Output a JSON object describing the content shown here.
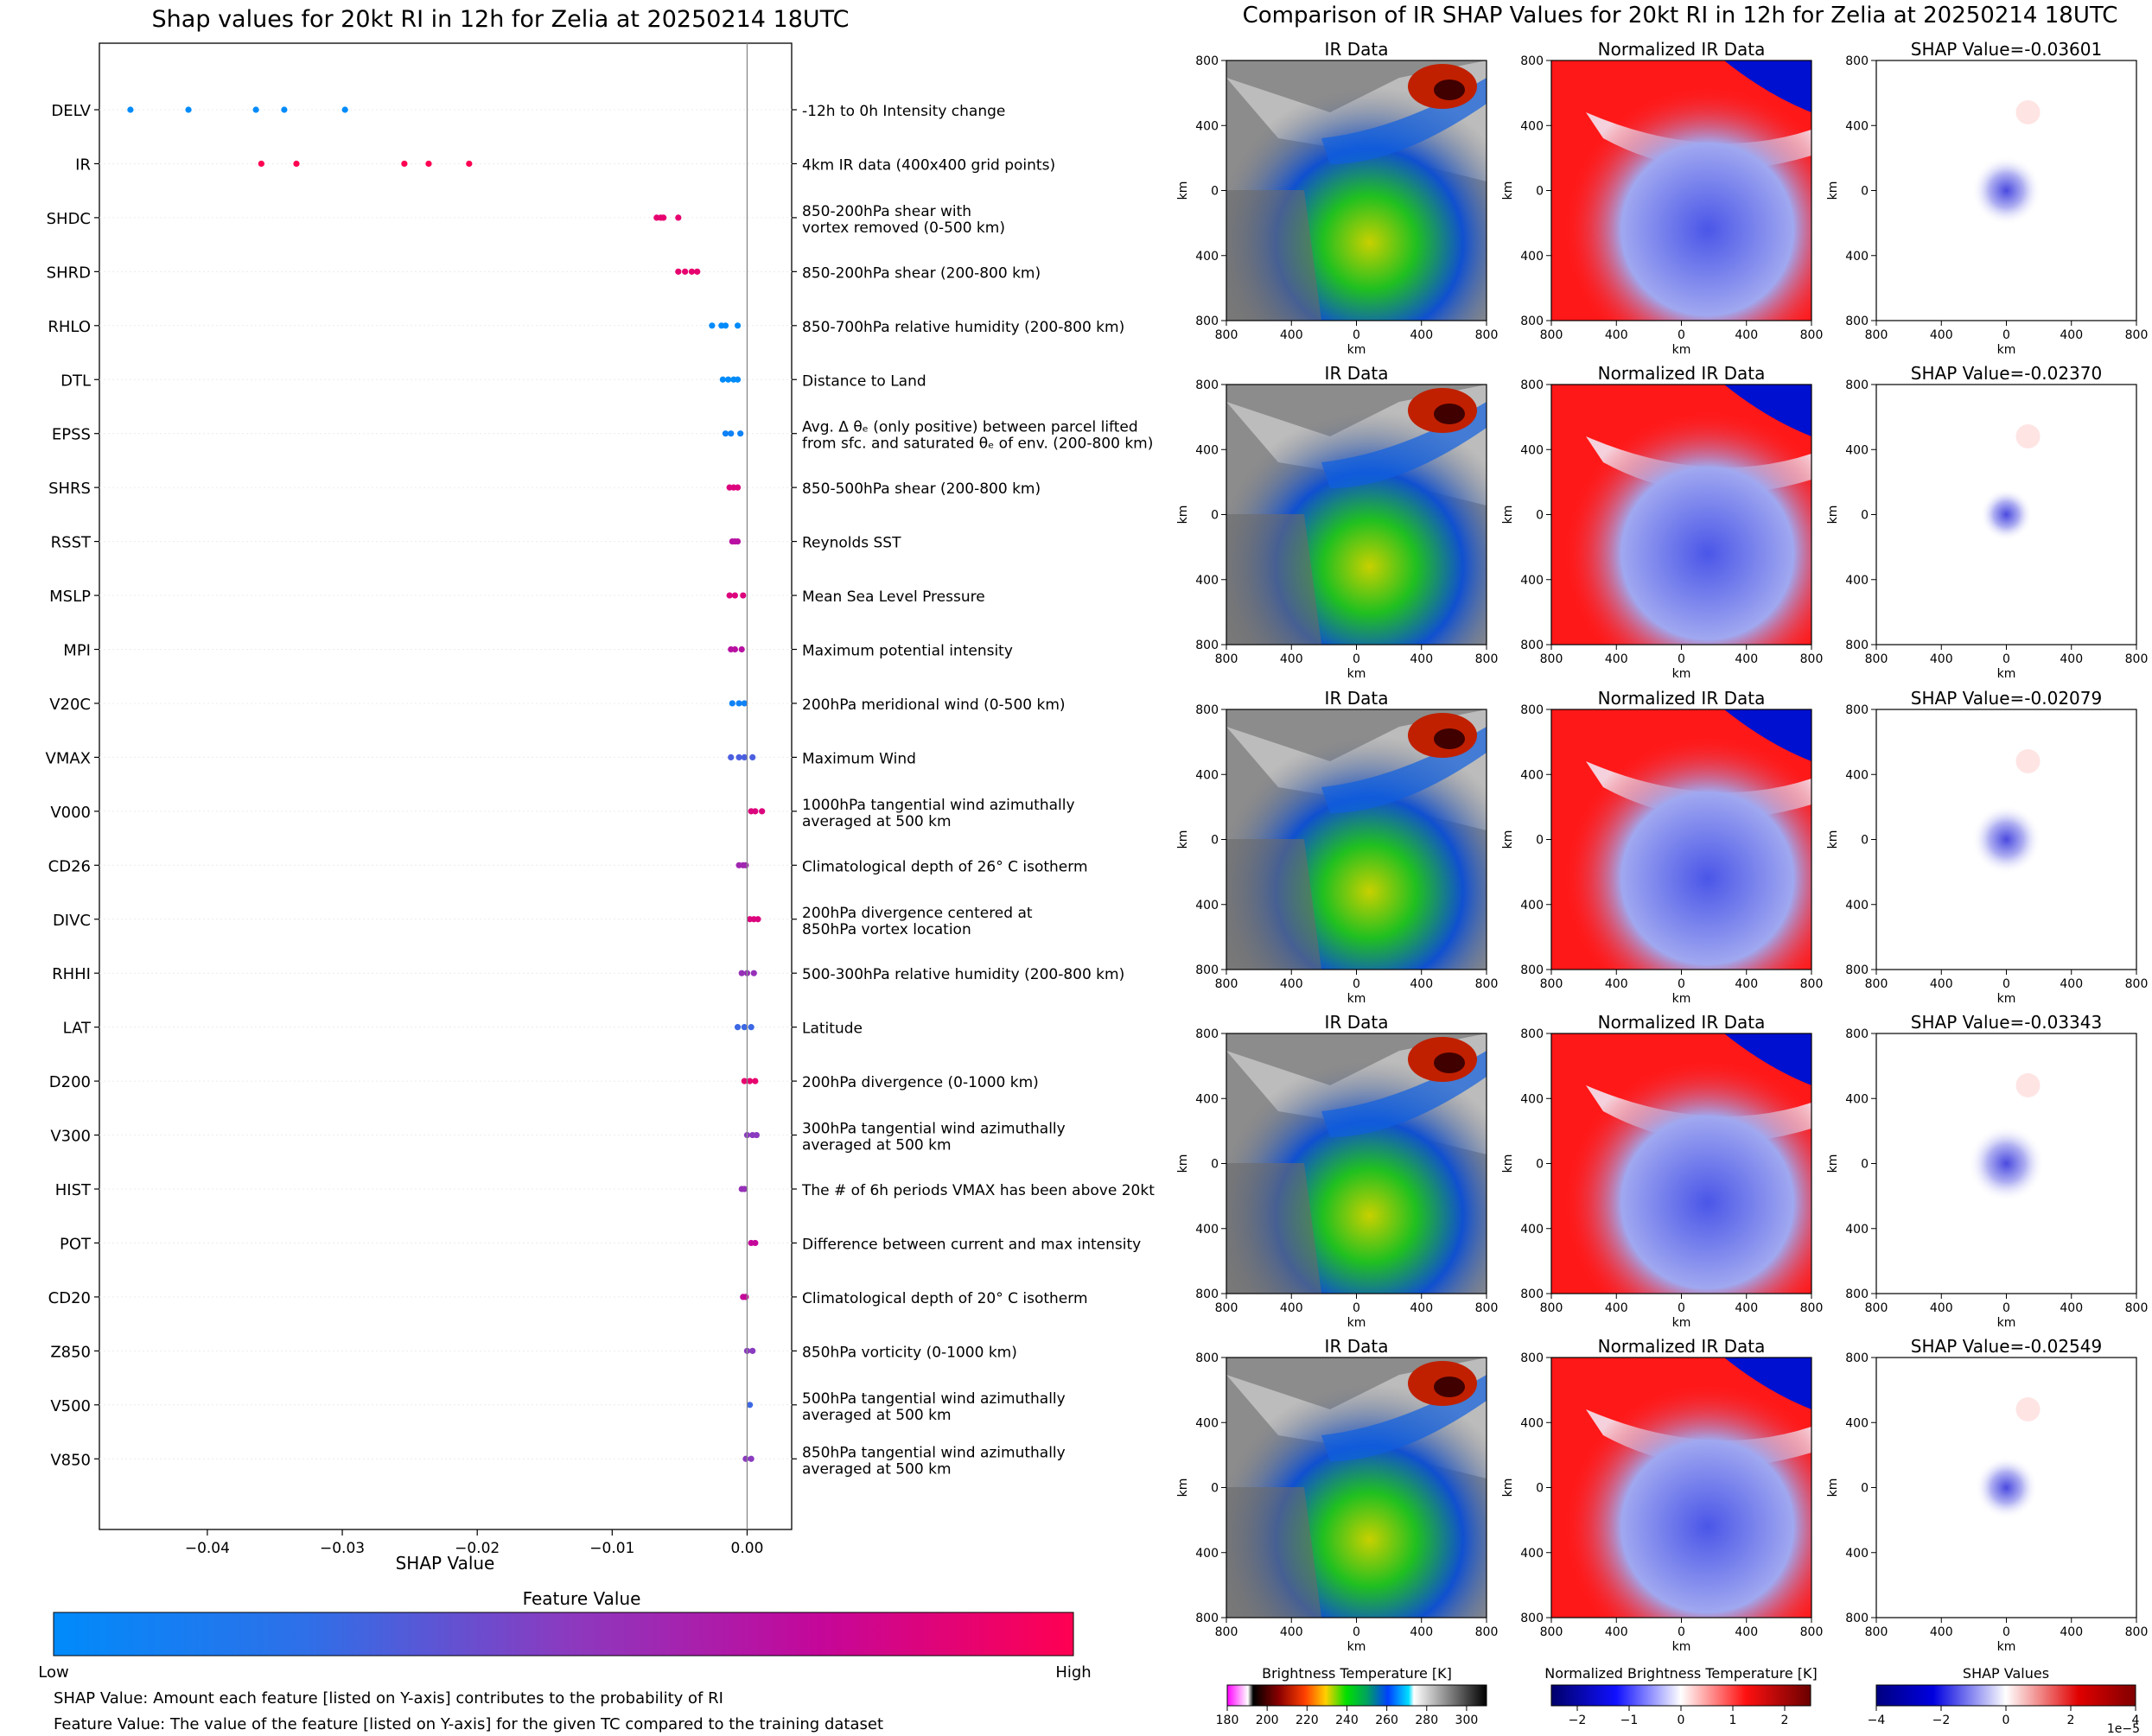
{
  "chart_data": [
    {
      "type": "scatter",
      "title": "Shap values for 20kt RI in 12h for Zelia at 20250214 18UTC",
      "xlabel": "SHAP Value",
      "xlim": [
        -0.048,
        0.0033
      ],
      "x_ticks": [
        "−0.04",
        "−0.03",
        "−0.02",
        "−0.01",
        "0.00"
      ],
      "x_tick_values": [
        -0.04,
        -0.03,
        -0.02,
        -0.01,
        0.0
      ],
      "colorbar": {
        "title": "Feature Value",
        "low_label": "Low",
        "high_label": "High",
        "colors": [
          "#008bfb",
          "#4b5fe0",
          "#8a3bc0",
          "#c4079a",
          "#ff0052"
        ]
      },
      "features": [
        {
          "name": "DELV",
          "desc": [
            "-12h to 0h Intensity change"
          ],
          "values": [
            -0.0457,
            -0.0414,
            -0.0364,
            -0.0343,
            -0.0298
          ],
          "color_level": 0.0
        },
        {
          "name": "IR",
          "desc": [
            "4km IR data (400x400 grid points)"
          ],
          "values": [
            -0.036,
            -0.0334,
            -0.0254,
            -0.0236,
            -0.0206
          ],
          "color_level": 1.0
        },
        {
          "name": "SHDC",
          "desc": [
            "850-200hPa shear with",
            "vortex removed (0-500 km)"
          ],
          "values": [
            -0.0067,
            -0.0064,
            -0.0062,
            -0.0051
          ],
          "color_level": 0.9
        },
        {
          "name": "SHRD",
          "desc": [
            "850-200hPa shear (200-800 km)"
          ],
          "values": [
            -0.0051,
            -0.0046,
            -0.0041,
            -0.0037
          ],
          "color_level": 0.9
        },
        {
          "name": "RHLO",
          "desc": [
            "850-700hPa relative humidity (200-800 km)"
          ],
          "values": [
            -0.0026,
            -0.0019,
            -0.0016,
            -0.0007
          ],
          "color_level": 0.0
        },
        {
          "name": "DTL",
          "desc": [
            "Distance to Land"
          ],
          "values": [
            -0.0018,
            -0.0014,
            -0.001,
            -0.0007
          ],
          "color_level": 0.0
        },
        {
          "name": "EPSS",
          "desc": [
            "Avg. Δ θₑ (only positive) between parcel lifted",
            "from sfc. and saturated θₑ of env. (200-800 km)"
          ],
          "values": [
            -0.0016,
            -0.0012,
            -0.0005
          ],
          "color_level": 0.05
        },
        {
          "name": "SHRS",
          "desc": [
            "850-500hPa shear (200-800 km)"
          ],
          "values": [
            -0.0013,
            -0.001,
            -0.0007
          ],
          "color_level": 0.85
        },
        {
          "name": "RSST",
          "desc": [
            "Reynolds SST"
          ],
          "values": [
            -0.0011,
            -0.0009,
            -0.0007
          ],
          "color_level": 0.7
        },
        {
          "name": "MSLP",
          "desc": [
            "Mean Sea Level Pressure"
          ],
          "values": [
            -0.0013,
            -0.0009,
            -0.0003
          ],
          "color_level": 0.85
        },
        {
          "name": "MPI",
          "desc": [
            "Maximum potential intensity"
          ],
          "values": [
            -0.0012,
            -0.0009,
            -0.0004
          ],
          "color_level": 0.7
        },
        {
          "name": "V20C",
          "desc": [
            "200hPa meridional wind (0-500 km)"
          ],
          "values": [
            -0.0011,
            -0.0006,
            -0.0002
          ],
          "color_level": 0.05
        },
        {
          "name": "VMAX",
          "desc": [
            "Maximum Wind"
          ],
          "values": [
            -0.0012,
            -0.0006,
            -0.0002,
            0.0004
          ],
          "color_level": 0.25
        },
        {
          "name": "V000",
          "desc": [
            "1000hPa tangential wind azimuthally",
            "averaged at 500 km"
          ],
          "values": [
            0.0003,
            0.0006,
            0.0011
          ],
          "color_level": 0.85
        },
        {
          "name": "CD26",
          "desc": [
            "Climatological depth of 26° C isotherm"
          ],
          "values": [
            -0.0006,
            -0.0003,
            -0.0001
          ],
          "color_level": 0.6
        },
        {
          "name": "DIVC",
          "desc": [
            "200hPa divergence centered at",
            "850hPa vortex location"
          ],
          "values": [
            0.0002,
            0.0005,
            0.0008
          ],
          "color_level": 0.85
        },
        {
          "name": "RHHI",
          "desc": [
            "500-300hPa relative humidity (200-800 km)"
          ],
          "values": [
            -0.0004,
            0.0,
            0.0005
          ],
          "color_level": 0.55
        },
        {
          "name": "LAT",
          "desc": [
            "Latitude"
          ],
          "values": [
            -0.0007,
            -0.0002,
            0.0003
          ],
          "color_level": 0.2
        },
        {
          "name": "D200",
          "desc": [
            "200hPa divergence (0-1000 km)"
          ],
          "values": [
            -0.0002,
            0.0002,
            0.0006
          ],
          "color_level": 0.9
        },
        {
          "name": "V300",
          "desc": [
            "300hPa tangential wind azimuthally",
            "averaged at 500 km"
          ],
          "values": [
            0.0,
            0.0004,
            0.0007
          ],
          "color_level": 0.5
        },
        {
          "name": "HIST",
          "desc": [
            "The # of 6h periods VMAX has been above 20kt"
          ],
          "values": [
            -0.0004,
            -0.0002
          ],
          "color_level": 0.55
        },
        {
          "name": "POT",
          "desc": [
            "Difference between current and max intensity"
          ],
          "values": [
            0.0003,
            0.0006
          ],
          "color_level": 0.75
        },
        {
          "name": "CD20",
          "desc": [
            "Climatological depth of 20° C isotherm"
          ],
          "values": [
            -0.0003,
            -0.0001
          ],
          "color_level": 0.75
        },
        {
          "name": "Z850",
          "desc": [
            "850hPa vorticity (0-1000 km)"
          ],
          "values": [
            0.0,
            0.0004
          ],
          "color_level": 0.5
        },
        {
          "name": "V500",
          "desc": [
            "500hPa tangential wind azimuthally",
            "averaged at 500 km"
          ],
          "values": [
            0.0002
          ],
          "color_level": 0.2
        },
        {
          "name": "V850",
          "desc": [
            "850hPa tangential wind azimuthally",
            "averaged at 500 km"
          ],
          "values": [
            -0.0001,
            0.0003
          ],
          "color_level": 0.5
        }
      ],
      "notes": [
        "SHAP Value: Amount each feature [listed on Y-axis] contributes to the probability of RI",
        "Feature Value: The value of the feature [listed on Y-axis] for the given TC compared to the training dataset"
      ]
    },
    {
      "type": "heatmap",
      "title": "Comparison of IR SHAP Values for 20kt RI in 12h for Zelia at 20250214 18UTC",
      "column_titles": [
        "IR Data",
        "Normalized IR Data"
      ],
      "shap_titles": [
        "SHAP Value=-0.03601",
        "SHAP Value=-0.02370",
        "SHAP Value=-0.02079",
        "SHAP Value=-0.03343",
        "SHAP Value=-0.02549"
      ],
      "axis_label": "km",
      "ticks": [
        "800",
        "400",
        "0",
        "400",
        "800"
      ],
      "colorbars": [
        {
          "label": "Brightness Temperature [K]",
          "ticks": [
            "180",
            "200",
            "220",
            "240",
            "260",
            "280",
            "300"
          ],
          "range": [
            180,
            310
          ]
        },
        {
          "label": "Normalized Brightness Temperature [K]",
          "ticks": [
            "−2",
            "−1",
            "0",
            "1",
            "2"
          ],
          "range": [
            -2.5,
            2.5
          ]
        },
        {
          "label": "SHAP Values",
          "ticks": [
            "−4",
            "−2",
            "0",
            "2",
            "4"
          ],
          "range": [
            -4,
            4
          ],
          "multiplier": "1e−5"
        }
      ]
    }
  ]
}
